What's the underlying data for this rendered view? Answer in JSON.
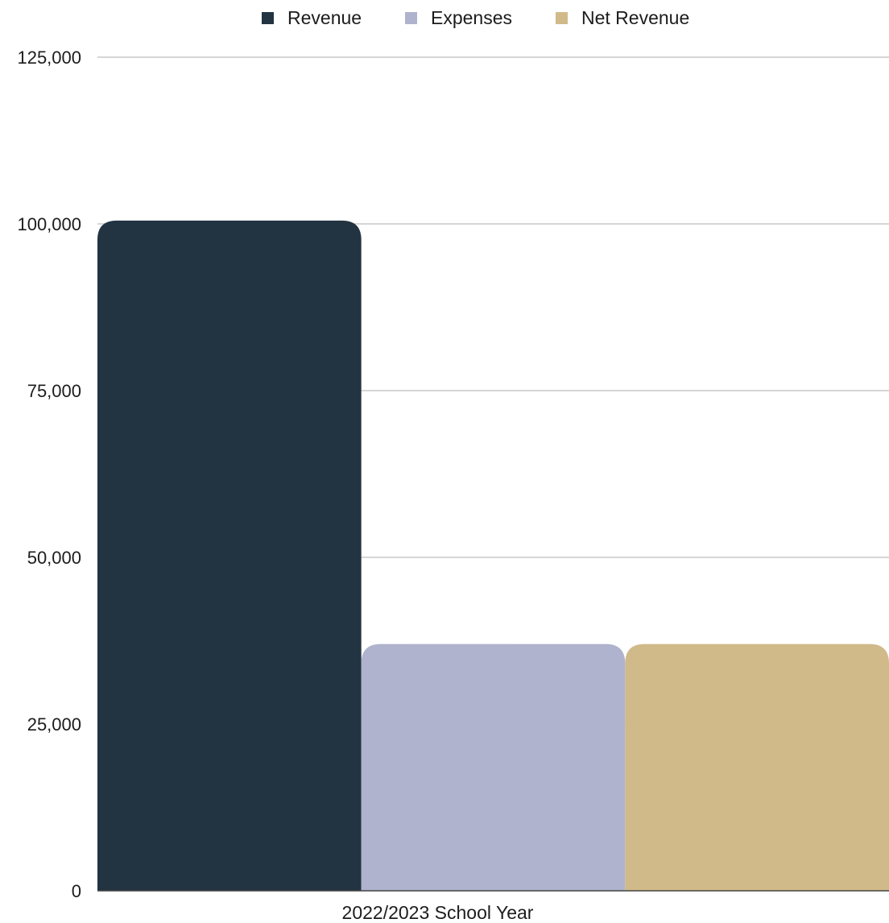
{
  "chart_data": {
    "type": "bar",
    "categories": [
      "2022/2023 School Year"
    ],
    "series": [
      {
        "name": "Revenue",
        "values": [
          100500
        ],
        "color": "#223341"
      },
      {
        "name": "Expenses",
        "values": [
          37000
        ],
        "color": "#afb3cd"
      },
      {
        "name": "Net Revenue",
        "values": [
          37000
        ],
        "color": "#d1ba89"
      }
    ],
    "title": "",
    "xlabel": "",
    "ylabel": "",
    "ylim": [
      0,
      125000
    ],
    "yticks": [
      0,
      25000,
      50000,
      75000,
      100000,
      125000
    ],
    "ytick_labels": [
      "0",
      "25,000",
      "50,000",
      "75,000",
      "100,000",
      "125,000"
    ],
    "grid": true,
    "grid_color": "#c8c8c8",
    "legend_position": "top-center"
  }
}
